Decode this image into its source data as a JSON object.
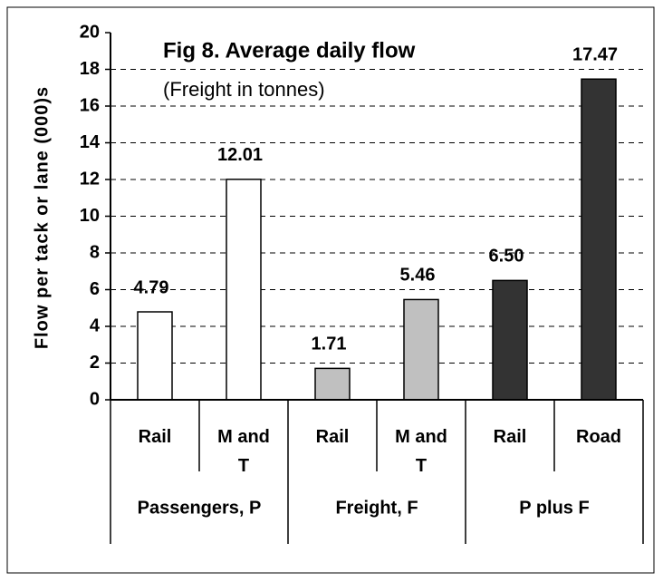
{
  "chart_data": {
    "type": "bar",
    "title": "Fig 8. Average daily flow",
    "subtitle": "(Freight in tonnes)",
    "y_label": "Flow per tack or lane (000)s",
    "categories": [
      "Rail",
      "M and T",
      "Rail",
      "M and T",
      "Rail",
      "Road"
    ],
    "groups": [
      "Passengers, P",
      "Freight, F",
      "P plus F"
    ],
    "values": [
      4.79,
      12.01,
      1.71,
      5.46,
      6.5,
      17.47
    ],
    "value_labels": [
      "4.79",
      "12.01",
      "1.71",
      "5.46",
      "6.50",
      "17.47"
    ],
    "colors": [
      "#ffffff",
      "#ffffff",
      "#c0c0c0",
      "#c0c0c0",
      "#333333",
      "#333333"
    ],
    "ylim": [
      0,
      20
    ],
    "yticks": [
      0,
      2,
      4,
      6,
      8,
      10,
      12,
      14,
      16,
      18,
      20
    ],
    "grid": true
  }
}
